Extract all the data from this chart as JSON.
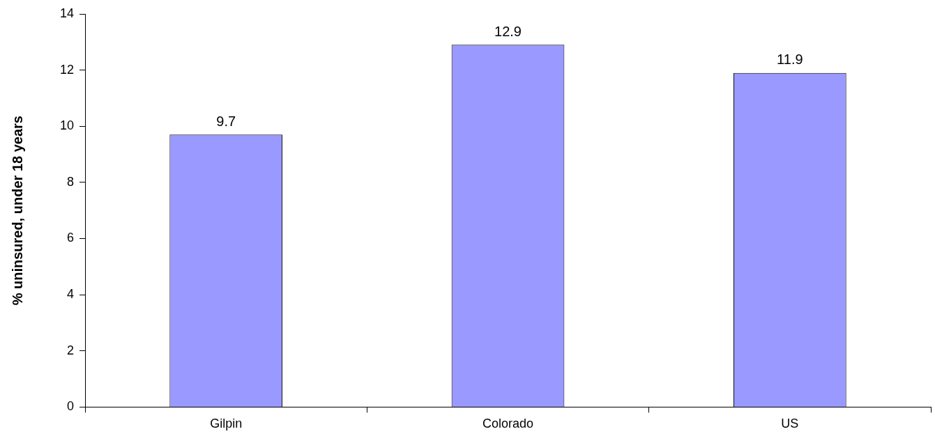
{
  "chart_data": {
    "type": "bar",
    "ylabel": "% uninsured, under 18 years",
    "categories": [
      "Gilpin",
      "Colorado",
      "US"
    ],
    "values": [
      9.7,
      12.9,
      11.9
    ],
    "color": "#9999ff",
    "ylim": [
      0,
      14
    ],
    "yticks": [
      0,
      2,
      4,
      6,
      8,
      10,
      12,
      14
    ],
    "grid": false,
    "legend": false,
    "data_labels": true
  }
}
